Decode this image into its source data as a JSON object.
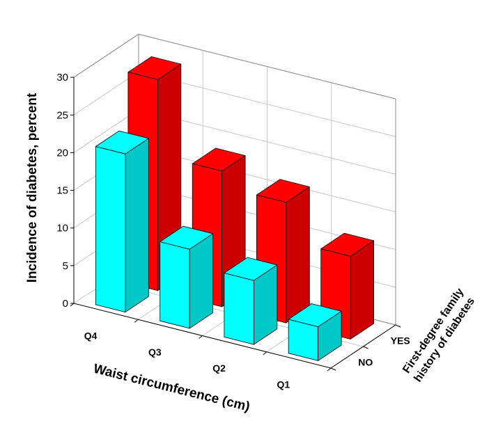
{
  "chart_data": {
    "type": "bar",
    "variant": "3d-grouped",
    "ylabel": "Incidence of diabetes, percent",
    "xlabel": "Waist circumference (cm)",
    "zlabel_lines": [
      "First-degree family",
      "history of diabetes"
    ],
    "categories": [
      "Q4",
      "Q3",
      "Q2",
      "Q1"
    ],
    "y_ticks": [
      0,
      5,
      10,
      15,
      20,
      25,
      30
    ],
    "ylim": [
      0,
      30
    ],
    "grid": true,
    "series": [
      {
        "name": "YES",
        "values": [
          28,
          18,
          16,
          11
        ],
        "color": "#ff0000",
        "side_color": "#cc0000"
      },
      {
        "name": "NO",
        "values": [
          21,
          10.5,
          8.5,
          4.5
        ],
        "color": "#00ffff",
        "side_color": "#00c8c8"
      }
    ]
  }
}
